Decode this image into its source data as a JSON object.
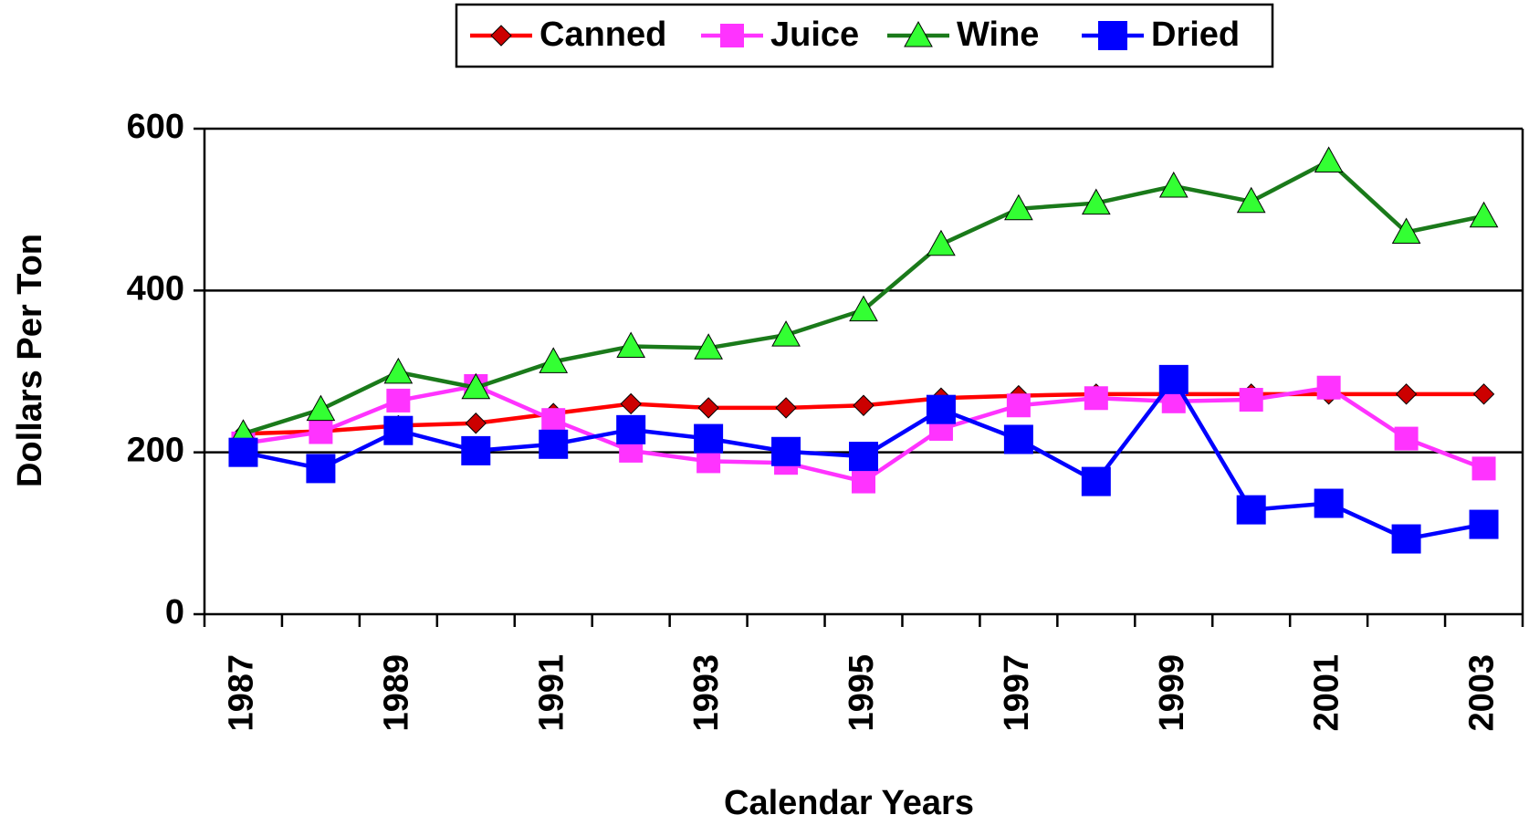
{
  "chart_data": {
    "type": "line",
    "x_label": "Calendar Years",
    "y_label": "Dollars Per Ton",
    "categories": [
      "1987",
      null,
      "1989",
      null,
      "1991",
      null,
      "1993",
      null,
      "1995",
      null,
      "1997",
      null,
      "1999",
      null,
      "2001",
      null,
      "2003"
    ],
    "series": [
      {
        "name": "Canned",
        "color": "#ff0000",
        "marker": "diamond",
        "marker_color": "#cc0000",
        "values": [
          223,
          226,
          233,
          236,
          248,
          260,
          255,
          255,
          258,
          267,
          270,
          272,
          272,
          272,
          272,
          272,
          272
        ]
      },
      {
        "name": "Juice",
        "color": "#ff33ff",
        "marker": "square",
        "marker_color": "#ff33ff",
        "values": [
          211,
          225,
          264,
          282,
          240,
          202,
          189,
          187,
          164,
          229,
          258,
          267,
          263,
          265,
          280,
          217,
          180
        ]
      },
      {
        "name": "Wine",
        "color": "#1a7a1a",
        "marker": "triangle",
        "marker_color": "#33ff33",
        "values": [
          223,
          253,
          299,
          280,
          312,
          331,
          329,
          345,
          376,
          457,
          501,
          508,
          529,
          510,
          560,
          472,
          492
        ]
      },
      {
        "name": "Dried",
        "color": "#0000ff",
        "marker": "bigsquare",
        "marker_color": "#0000ff",
        "values": [
          200,
          180,
          227,
          202,
          210,
          228,
          217,
          201,
          195,
          253,
          216,
          164,
          290,
          129,
          137,
          93,
          111
        ]
      }
    ],
    "ylim": [
      0,
      600
    ],
    "yticks": [
      0,
      200,
      400,
      600
    ],
    "grid": true,
    "legend": "top"
  }
}
